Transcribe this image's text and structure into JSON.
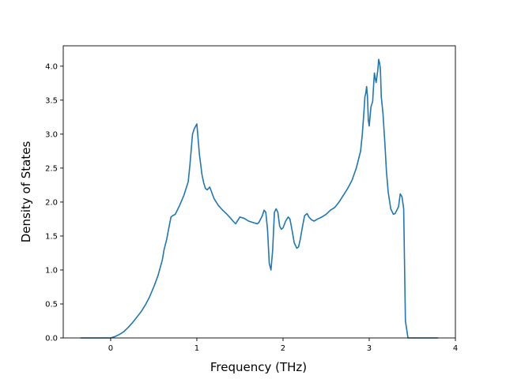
{
  "chart_data": {
    "type": "line",
    "title": "",
    "xlabel": "Frequency (THz)",
    "ylabel": "Density of States",
    "xlim": [
      -0.55,
      4.0
    ],
    "ylim": [
      0.0,
      4.3
    ],
    "xticks": [
      0,
      1,
      2,
      3,
      4
    ],
    "yticks": [
      0.0,
      0.5,
      1.0,
      1.5,
      2.0,
      2.5,
      3.0,
      3.5,
      4.0
    ],
    "xtick_labels": [
      "0",
      "1",
      "2",
      "3",
      "4"
    ],
    "ytick_labels": [
      "0.0",
      "0.5",
      "1.0",
      "1.5",
      "2.0",
      "2.5",
      "3.0",
      "3.5",
      "4.0"
    ],
    "grid": false,
    "legend": "none",
    "series": [
      {
        "color": "#1f77b4",
        "x": [
          -0.35,
          -0.1,
          0.0,
          0.05,
          0.1,
          0.15,
          0.2,
          0.25,
          0.3,
          0.35,
          0.4,
          0.45,
          0.5,
          0.55,
          0.6,
          0.62,
          0.65,
          0.68,
          0.7,
          0.72,
          0.75,
          0.8,
          0.85,
          0.9,
          0.92,
          0.95,
          0.97,
          1.0,
          1.03,
          1.06,
          1.08,
          1.1,
          1.12,
          1.15,
          1.2,
          1.25,
          1.3,
          1.35,
          1.4,
          1.42,
          1.45,
          1.5,
          1.55,
          1.6,
          1.65,
          1.7,
          1.72,
          1.74,
          1.76,
          1.78,
          1.8,
          1.82,
          1.84,
          1.86,
          1.88,
          1.9,
          1.92,
          1.94,
          1.96,
          1.98,
          2.0,
          2.03,
          2.06,
          2.08,
          2.1,
          2.13,
          2.16,
          2.18,
          2.2,
          2.22,
          2.25,
          2.28,
          2.3,
          2.33,
          2.36,
          2.4,
          2.45,
          2.5,
          2.55,
          2.6,
          2.65,
          2.7,
          2.75,
          2.8,
          2.85,
          2.9,
          2.92,
          2.94,
          2.95,
          2.96,
          2.97,
          2.98,
          2.99,
          3.0,
          3.02,
          3.04,
          3.05,
          3.06,
          3.07,
          3.08,
          3.09,
          3.1,
          3.11,
          3.12,
          3.13,
          3.14,
          3.16,
          3.18,
          3.2,
          3.22,
          3.25,
          3.28,
          3.3,
          3.32,
          3.34,
          3.36,
          3.38,
          3.4,
          3.42,
          3.45,
          3.5,
          3.6,
          3.8
        ],
        "y": [
          0.0,
          0.0,
          0.0,
          0.02,
          0.05,
          0.09,
          0.15,
          0.22,
          0.3,
          0.38,
          0.48,
          0.6,
          0.75,
          0.92,
          1.15,
          1.3,
          1.45,
          1.65,
          1.78,
          1.8,
          1.82,
          1.95,
          2.1,
          2.3,
          2.55,
          3.0,
          3.08,
          3.15,
          2.7,
          2.4,
          2.28,
          2.2,
          2.18,
          2.22,
          2.05,
          1.95,
          1.88,
          1.82,
          1.75,
          1.72,
          1.68,
          1.78,
          1.76,
          1.72,
          1.7,
          1.68,
          1.7,
          1.75,
          1.8,
          1.88,
          1.85,
          1.6,
          1.1,
          1.0,
          1.3,
          1.85,
          1.9,
          1.85,
          1.65,
          1.6,
          1.62,
          1.72,
          1.78,
          1.75,
          1.62,
          1.4,
          1.32,
          1.34,
          1.45,
          1.6,
          1.8,
          1.83,
          1.78,
          1.74,
          1.72,
          1.75,
          1.78,
          1.82,
          1.88,
          1.92,
          2.0,
          2.1,
          2.2,
          2.32,
          2.5,
          2.75,
          3.0,
          3.35,
          3.55,
          3.6,
          3.7,
          3.55,
          3.2,
          3.12,
          3.4,
          3.48,
          3.7,
          3.9,
          3.82,
          3.76,
          3.85,
          3.95,
          4.1,
          4.05,
          3.95,
          3.55,
          3.3,
          2.9,
          2.45,
          2.15,
          1.9,
          1.82,
          1.83,
          1.88,
          1.93,
          2.12,
          2.08,
          1.9,
          0.25,
          0.0,
          0.0,
          0.0,
          0.0
        ]
      }
    ]
  }
}
